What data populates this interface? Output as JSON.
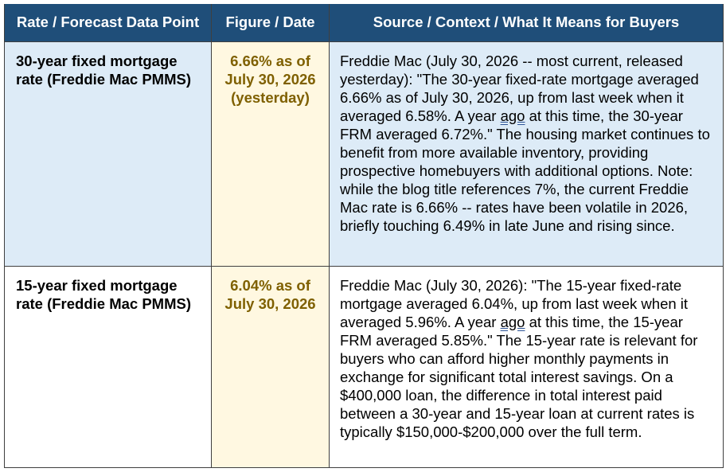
{
  "table": {
    "headers": [
      "Rate / Forecast Data Point",
      "Figure / Date",
      "Source / Context / What It Means for Buyers"
    ],
    "rows": [
      {
        "label": "30-year fixed mortgage rate (Freddie Mac PMMS)",
        "figure": "6.66% as of July 30, 2026 (yesterday)",
        "context_before": "Freddie Mac (July 30, 2026 -- most current, released yesterday): \"The 30-year fixed-rate mortgage averaged 6.66% as of July 30, 2026, up from last week when it averaged 6.58%. A year ",
        "context_underlined": "ago",
        "context_after": " at this time, the 30-year FRM averaged 6.72%.\" The housing market continues to benefit from more available inventory, providing prospective homebuyers with additional options. Note: while the blog title references 7%, the current Freddie Mac rate is 6.66% -- rates have been volatile in 2026, briefly touching 6.49% in late June and rising since."
      },
      {
        "label": "15-year fixed mortgage rate (Freddie Mac PMMS)",
        "figure": "6.04% as of July 30, 2026",
        "context_before": "Freddie Mac (July 30, 2026): \"The 15-year fixed-rate mortgage averaged 6.04%, up from last week when it averaged 5.96%. A year ",
        "context_underlined": "ago",
        "context_after": " at this time, the 15-year FRM averaged 5.85%.\" The 15-year rate is relevant for buyers who can afford higher monthly payments in exchange for significant total interest savings. On a $400,000 loan, the difference in total interest paid between a 30-year and 15-year loan at current rates is typically $150,000-$200,000 over the full term."
      }
    ],
    "colors": {
      "header_bg": "#1f4e79",
      "row1_bg": "#ddebf7",
      "figure_bg": "#fff8e1",
      "figure_text": "#7f6000"
    }
  }
}
